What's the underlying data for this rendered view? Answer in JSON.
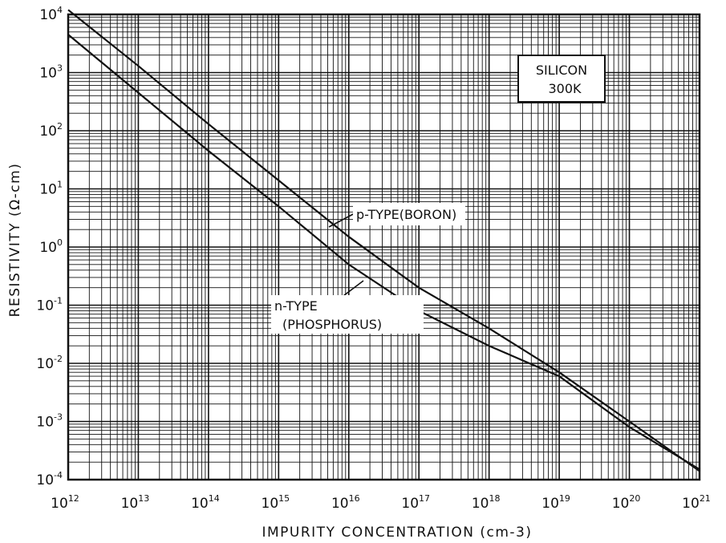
{
  "chart_data": {
    "type": "line",
    "xscale": "log",
    "yscale": "log",
    "xlim": [
      1000000000000.0,
      1e+21
    ],
    "ylim": [
      0.0001,
      10000.0
    ],
    "xlabel": "IMPURITY CONCENTRATION (cm-3)",
    "ylabel": "RESISTIVITY (Ω-cm)",
    "x_tick_labels": [
      {
        "base": "10",
        "exp": "12"
      },
      {
        "base": "10",
        "exp": "13"
      },
      {
        "base": "10",
        "exp": "14"
      },
      {
        "base": "10",
        "exp": "15"
      },
      {
        "base": "10",
        "exp": "16"
      },
      {
        "base": "10",
        "exp": "17"
      },
      {
        "base": "10",
        "exp": "18"
      },
      {
        "base": "10",
        "exp": "19"
      },
      {
        "base": "10",
        "exp": "20"
      },
      {
        "base": "10",
        "exp": "21"
      }
    ],
    "y_tick_labels": [
      {
        "base": "10",
        "exp": "-4"
      },
      {
        "base": "10",
        "exp": "-3"
      },
      {
        "base": "10",
        "exp": "-2"
      },
      {
        "base": "10",
        "exp": "-1"
      },
      {
        "base": "10",
        "exp": "0"
      },
      {
        "base": "10",
        "exp": "1"
      },
      {
        "base": "10",
        "exp": "2"
      },
      {
        "base": "10",
        "exp": "3"
      },
      {
        "base": "10",
        "exp": "4"
      }
    ],
    "grid": true,
    "annotation": [
      "SILICON",
      "300K"
    ],
    "series": [
      {
        "name": "p-TYPE(BORON)",
        "x": [
          1000000000000.0,
          10000000000000.0,
          100000000000000.0,
          1000000000000000.0,
          1e+16,
          1e+17,
          1e+18,
          1e+19,
          1e+20,
          1e+21
        ],
        "y": [
          12000,
          1300,
          130,
          14,
          1.5,
          0.2,
          0.04,
          0.007,
          0.001,
          0.00014
        ]
      },
      {
        "name": "n-TYPE (PHOSPHORUS)",
        "x": [
          1000000000000.0,
          10000000000000.0,
          100000000000000.0,
          1000000000000000.0,
          1e+16,
          1e+17,
          1e+18,
          1e+19,
          1e+20,
          1e+21
        ],
        "y": [
          4500,
          450,
          45,
          5,
          0.5,
          0.08,
          0.02,
          0.006,
          0.0008,
          0.00015
        ]
      }
    ]
  }
}
